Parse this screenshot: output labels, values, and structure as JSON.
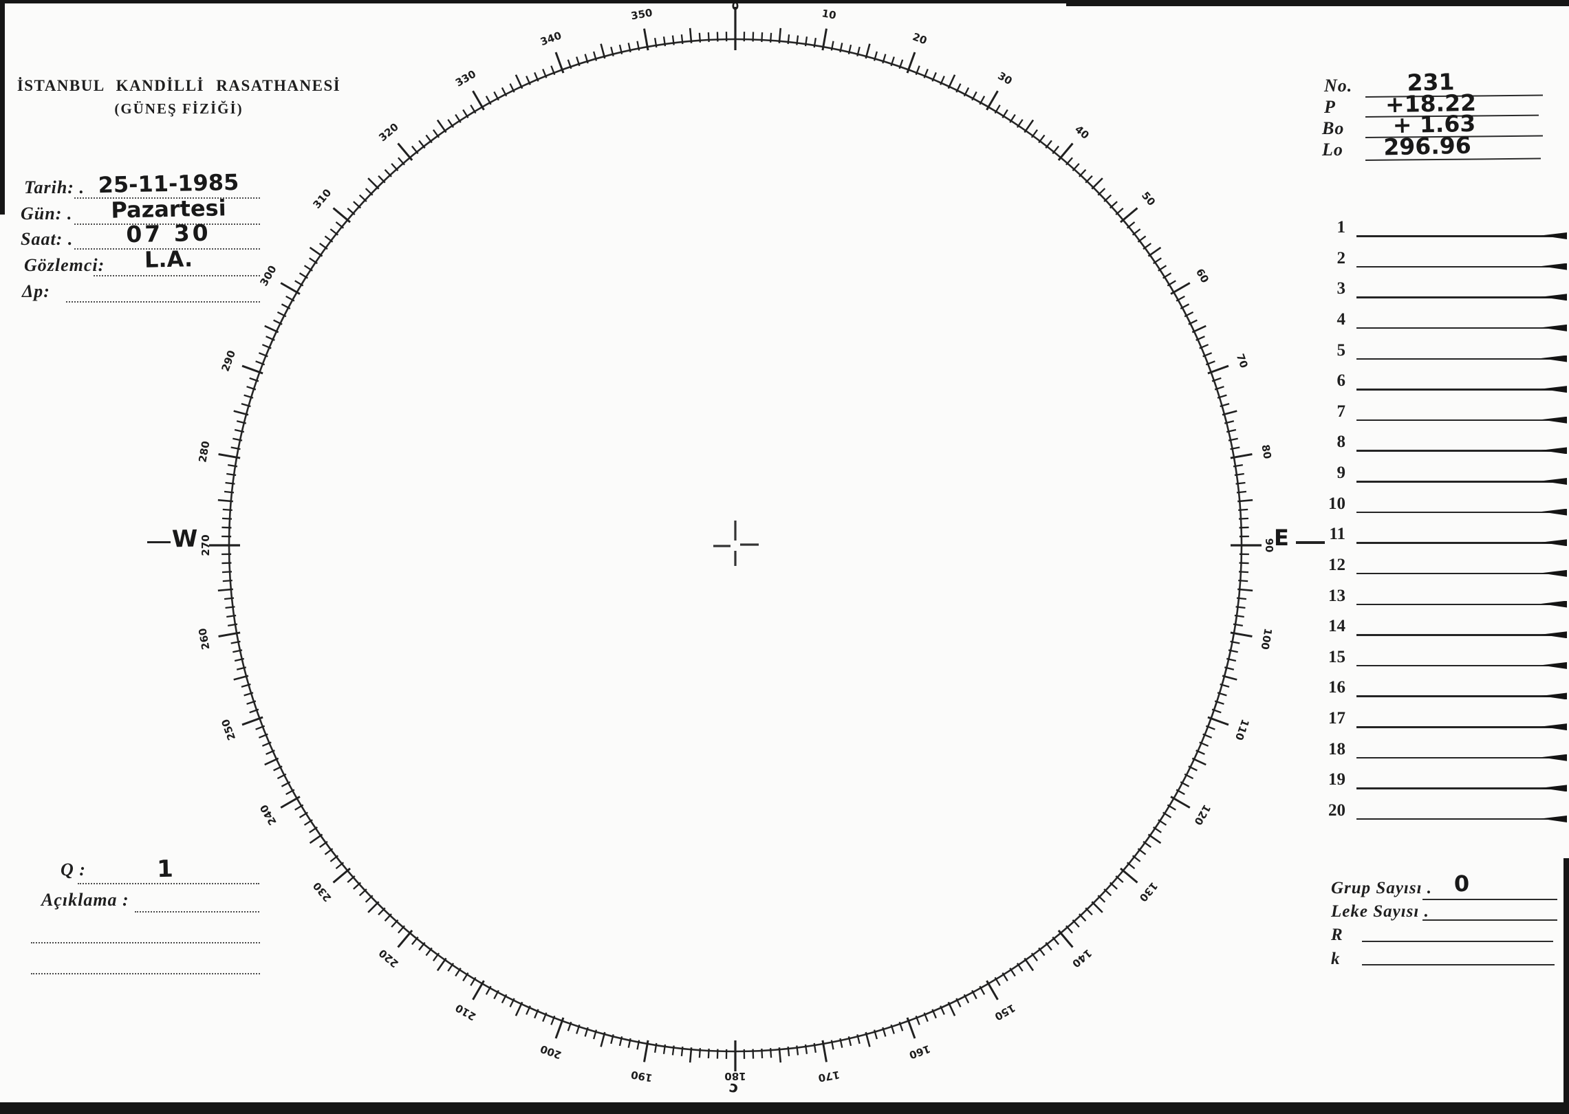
{
  "colors": {
    "ink": "#1f1f1f",
    "paper": "#fbfbfa",
    "scan_edge": "#161616"
  },
  "header": {
    "line1": "İSTANBUL KANDİLLİ RASATHANESİ",
    "line2": "(GÜNEŞ FİZİĞİ)"
  },
  "observation_fields": [
    {
      "label": "Tarih: .",
      "value": "25-11-1985"
    },
    {
      "label": "Gün: .",
      "value": "Pazartesi"
    },
    {
      "label": "Saat: .",
      "value": "07 30"
    },
    {
      "label": "Gözlemci:",
      "value": "L.A."
    },
    {
      "label": "Δp:",
      "value": ""
    }
  ],
  "ephemeris": [
    {
      "label": "No.",
      "value": "231"
    },
    {
      "label": "P",
      "value": "+18.22"
    },
    {
      "label": "Bo",
      "value": "+ 1.63"
    },
    {
      "label": "Lo",
      "value": "296.96"
    }
  ],
  "observation_list": {
    "numbers": [
      "1",
      "2",
      "3",
      "4",
      "5",
      "6",
      "7",
      "8",
      "9",
      "10",
      "11",
      "12",
      "13",
      "14",
      "15",
      "16",
      "17",
      "18",
      "19",
      "20"
    ]
  },
  "bottom_left": {
    "q_label": "Q :",
    "q_value": "1",
    "note_label": "Açıklama :"
  },
  "summary_fields": [
    {
      "label": "Grup Sayısı .",
      "value": "0"
    },
    {
      "label": "Leke Sayısı .",
      "value": ""
    },
    {
      "label": "R",
      "value": ""
    },
    {
      "label": "k",
      "value": ""
    }
  ],
  "dial": {
    "tick_step_deg": 1,
    "medium_tick_deg": 5,
    "major_tick_deg": 10,
    "degree_labels": [
      "0",
      "10",
      "20",
      "30",
      "40",
      "50",
      "60",
      "70",
      "80",
      "90",
      "100",
      "110",
      "120",
      "130",
      "140",
      "150",
      "160",
      "170",
      "180",
      "190",
      "200",
      "210",
      "220",
      "230",
      "240",
      "250",
      "260",
      "270",
      "280",
      "290",
      "300",
      "310",
      "320",
      "330",
      "340",
      "350"
    ],
    "west_mark": "W",
    "east_mark": "E",
    "south_mark": "ɔ"
  }
}
